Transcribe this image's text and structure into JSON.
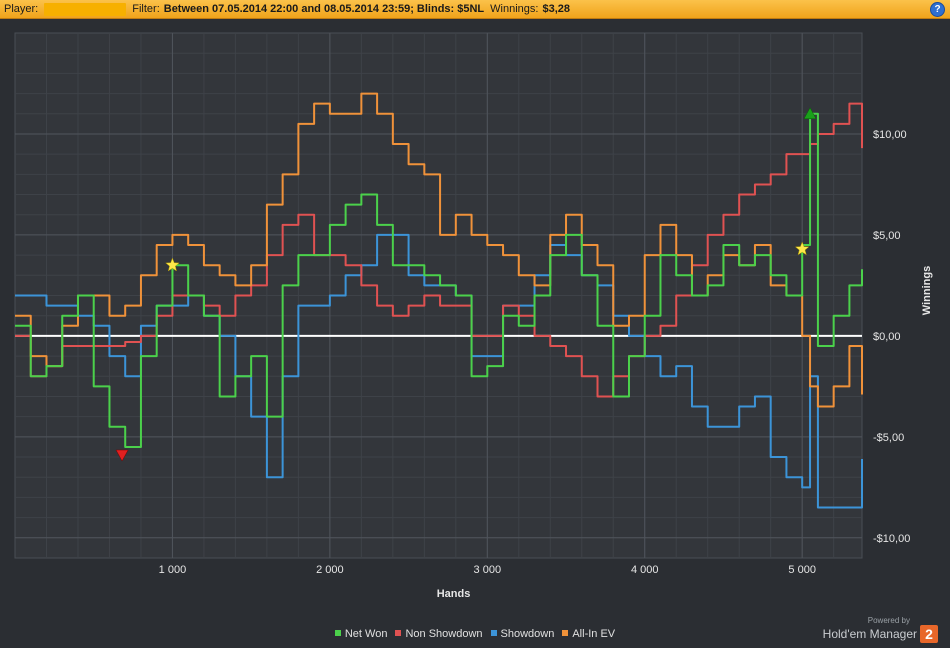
{
  "header": {
    "player_label": "Player:",
    "filter_label": "Filter:",
    "filter_value": "Between 07.05.2014 22:00 and 08.05.2014 23:59; Blinds: $5NL",
    "winnings_label": "Winnings:",
    "winnings_value": "$3,28",
    "help_icon": "?"
  },
  "branding": {
    "powered_by": "Powered by",
    "product": "Hold'em Manager",
    "badge": "2"
  },
  "chart_data": {
    "type": "line",
    "xlabel": "Hands",
    "ylabel": "Winnings",
    "xlim": [
      0,
      5380
    ],
    "ylim": [
      -11,
      15
    ],
    "x_ticks": [
      1000,
      2000,
      3000,
      4000,
      5000
    ],
    "x_tick_labels": [
      "1 000",
      "2 000",
      "3 000",
      "4 000",
      "5 000"
    ],
    "y_ticks": [
      10,
      5,
      0,
      -5,
      -10
    ],
    "y_tick_labels": [
      "$10,00",
      "$5,00",
      "$0,00",
      "-$5,00",
      "-$10,00"
    ],
    "grid": true,
    "zero_line": true,
    "legend_position": "bottom",
    "x": [
      0,
      100,
      200,
      300,
      400,
      500,
      600,
      700,
      800,
      900,
      1000,
      1100,
      1200,
      1300,
      1400,
      1500,
      1600,
      1700,
      1800,
      1900,
      2000,
      2100,
      2200,
      2300,
      2400,
      2500,
      2600,
      2700,
      2800,
      2900,
      3000,
      3100,
      3200,
      3300,
      3400,
      3500,
      3600,
      3700,
      3800,
      3900,
      4000,
      4100,
      4200,
      4300,
      4400,
      4500,
      4600,
      4700,
      4800,
      4900,
      5000,
      5050,
      5100,
      5200,
      5300,
      5380
    ],
    "series": [
      {
        "name": "Net Won",
        "color": "#4bd14b",
        "values": [
          0.5,
          -2.0,
          -1.5,
          1.0,
          2.0,
          -2.5,
          -4.5,
          -5.5,
          -1.0,
          1.5,
          3.5,
          2.0,
          1.0,
          -3.0,
          -2.0,
          -1.0,
          -4.0,
          2.5,
          4.0,
          4.0,
          5.5,
          6.5,
          7.0,
          5.5,
          3.5,
          3.5,
          3.0,
          2.5,
          2.0,
          -2.0,
          -1.5,
          1.0,
          0.5,
          2.0,
          4.0,
          5.0,
          3.0,
          0.5,
          -3.0,
          -1.0,
          1.0,
          4.0,
          3.0,
          2.0,
          2.5,
          4.5,
          3.5,
          4.0,
          3.0,
          2.0,
          4.5,
          11.0,
          -0.5,
          1.0,
          2.5,
          3.3
        ]
      },
      {
        "name": "Non Showdown",
        "color": "#e05252",
        "values": [
          0.0,
          -2.0,
          -1.5,
          -0.5,
          -0.5,
          -0.5,
          -0.5,
          -0.3,
          0.0,
          1.0,
          2.0,
          2.0,
          1.5,
          1.0,
          2.0,
          2.5,
          4.0,
          5.5,
          6.0,
          4.0,
          4.0,
          3.5,
          2.5,
          1.5,
          1.0,
          1.5,
          2.0,
          1.5,
          1.5,
          0.0,
          0.0,
          1.5,
          1.0,
          0.0,
          -0.5,
          -1.0,
          -2.0,
          -3.0,
          -2.0,
          -1.0,
          0.0,
          0.5,
          2.0,
          3.5,
          5.0,
          6.0,
          7.0,
          7.5,
          8.0,
          9.0,
          9.0,
          9.5,
          10.0,
          10.5,
          11.5,
          9.3
        ]
      },
      {
        "name": "Showdown",
        "color": "#3c94d8",
        "values": [
          2.0,
          2.0,
          1.5,
          1.5,
          1.0,
          0.5,
          -1.0,
          -2.0,
          0.5,
          1.5,
          1.5,
          2.0,
          1.0,
          0.0,
          -2.0,
          -4.0,
          -7.0,
          -2.0,
          1.5,
          1.5,
          2.0,
          3.0,
          3.5,
          5.0,
          5.0,
          3.0,
          2.5,
          2.5,
          2.0,
          -1.0,
          -1.0,
          1.5,
          1.5,
          3.0,
          4.5,
          4.0,
          3.0,
          2.5,
          1.0,
          0.0,
          -1.0,
          -2.0,
          -1.5,
          -3.5,
          -4.5,
          -4.5,
          -3.5,
          -3.0,
          -6.0,
          -7.0,
          -7.5,
          -2.0,
          -8.5,
          -8.5,
          -8.5,
          -6.1
        ]
      },
      {
        "name": "All-In EV",
        "color": "#f0923a",
        "values": [
          1.0,
          -1.0,
          -1.5,
          0.5,
          2.0,
          2.0,
          1.0,
          1.5,
          3.0,
          4.5,
          5.0,
          4.5,
          3.5,
          3.0,
          2.5,
          3.5,
          6.5,
          8.0,
          10.5,
          11.5,
          11.0,
          11.0,
          12.0,
          11.0,
          9.5,
          8.5,
          8.0,
          5.0,
          6.0,
          5.0,
          4.5,
          4.0,
          3.0,
          2.5,
          5.0,
          6.0,
          4.5,
          3.5,
          0.5,
          1.0,
          4.0,
          5.5,
          4.0,
          2.0,
          3.0,
          4.0,
          3.5,
          4.5,
          2.5,
          2.0,
          0.0,
          -2.5,
          -3.5,
          -2.5,
          -0.5,
          -2.9
        ]
      }
    ],
    "markers": [
      {
        "type": "star",
        "color": "#ffe84a",
        "series": "Net Won",
        "x": 1000,
        "y": 3.5
      },
      {
        "type": "triangle-down",
        "color": "#e02020",
        "series": "Net Won",
        "x": 680,
        "y": -5.9
      },
      {
        "type": "star",
        "color": "#ffe84a",
        "series": "Net Won",
        "x": 5000,
        "y": 4.3
      },
      {
        "type": "triangle-up",
        "color": "#1aa01a",
        "series": "Net Won",
        "x": 5050,
        "y": 11.0
      }
    ]
  }
}
